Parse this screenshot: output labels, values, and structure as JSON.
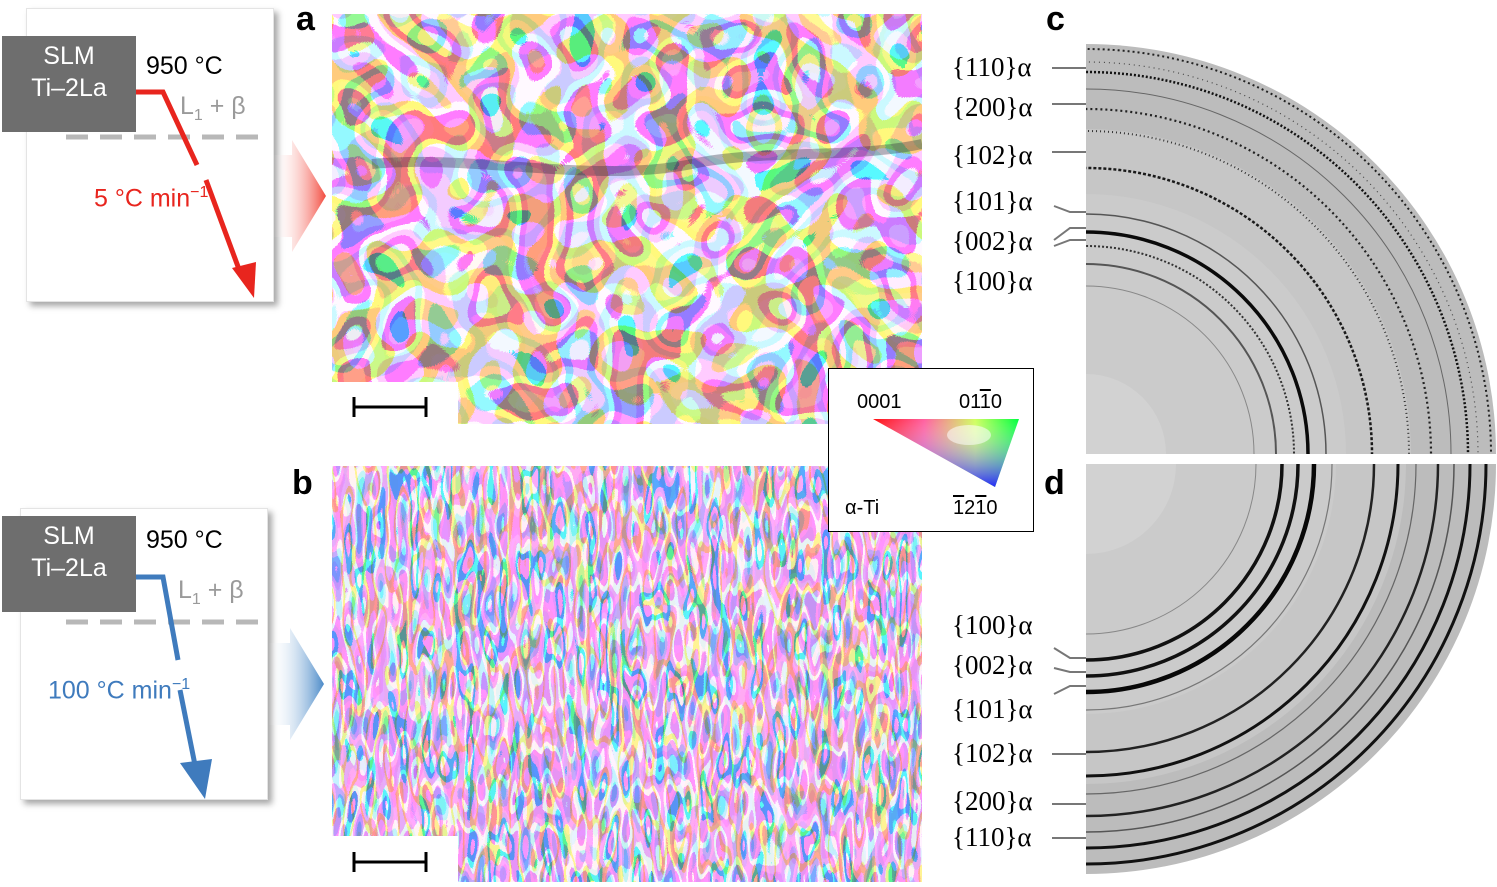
{
  "panels": {
    "a": "a",
    "b": "b",
    "c": "c",
    "d": "d"
  },
  "schematic_top": {
    "alloy_line1": "SLM",
    "alloy_line2": "Ti–2La",
    "temperature": "950 °C",
    "phase_prefix": "L",
    "phase_sub": "1",
    "phase_suffix": " + β",
    "rate_text": "5 °C min",
    "rate_sup": "−1",
    "color": "#e8251e"
  },
  "schematic_bottom": {
    "alloy_line1": "SLM",
    "alloy_line2": "Ti–2La",
    "temperature": "950 °C",
    "phase_prefix": "L",
    "phase_sub": "1",
    "phase_suffix": " + β",
    "rate_text": "100 °C min",
    "rate_sup": "−1",
    "color": "#3f7bbd"
  },
  "legend": {
    "corner_0001": "0001",
    "corner_01_pre": "01",
    "corner_01_bar": "1",
    "corner_01_post": "0",
    "corner_12_bar1": "1",
    "corner_12_mid": "2",
    "corner_12_bar2": "1",
    "corner_12_post": "0",
    "phase": "α-Ti"
  },
  "diffraction_c": {
    "labels": [
      "{110}α",
      "{200}α",
      "{102}α",
      "{101}α",
      "{002}α",
      "{100}α"
    ]
  },
  "diffraction_d": {
    "labels": [
      "{100}α",
      "{002}α",
      "{101}α",
      "{102}α",
      "{200}α",
      "{110}α"
    ]
  }
}
